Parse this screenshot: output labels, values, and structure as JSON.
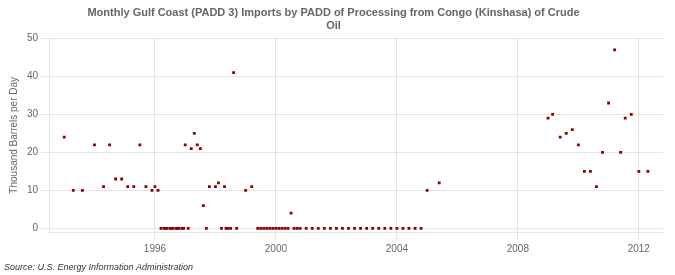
{
  "chart_data": {
    "type": "scatter",
    "title": "Monthly Gulf Coast (PADD 3) Imports by PADD of Processing from Congo (Kinshasa) of Crude\nOil",
    "ylabel": "Thousand Barrels per Day",
    "source": "Source: U.S. Energy Information Administration",
    "color": "#8b0000",
    "marker": "square",
    "grid": true,
    "xlim": [
      1992.5,
      2012.8
    ],
    "ylim": [
      -1,
      50
    ],
    "xticks": [
      1996,
      2000,
      2004,
      2008,
      2012
    ],
    "yticks": [
      0,
      10,
      20,
      30,
      40,
      50
    ],
    "x": [
      1993.0,
      1993.3,
      1993.6,
      1994.0,
      1994.3,
      1994.5,
      1994.7,
      1994.9,
      1995.1,
      1995.3,
      1995.5,
      1995.7,
      1995.9,
      1996.0,
      1996.1,
      1996.2,
      1996.3,
      1996.35,
      1996.4,
      1996.5,
      1996.55,
      1996.6,
      1996.7,
      1996.75,
      1996.8,
      1996.9,
      1996.95,
      1997.0,
      1997.1,
      1997.2,
      1997.3,
      1997.4,
      1997.5,
      1997.6,
      1997.7,
      1997.8,
      1998.0,
      1998.1,
      1998.2,
      1998.3,
      1998.35,
      1998.4,
      1998.5,
      1998.6,
      1998.7,
      1999.0,
      1999.2,
      1999.4,
      1999.5,
      1999.6,
      1999.7,
      1999.8,
      1999.9,
      2000.0,
      2000.1,
      2000.2,
      2000.3,
      2000.4,
      2000.5,
      2000.6,
      2000.7,
      2000.8,
      2001.0,
      2001.2,
      2001.4,
      2001.6,
      2001.8,
      2002.0,
      2002.2,
      2002.4,
      2002.6,
      2002.8,
      2003.0,
      2003.2,
      2003.4,
      2003.6,
      2003.8,
      2004.0,
      2004.2,
      2004.4,
      2004.6,
      2004.8,
      2005.0,
      2005.4,
      2009.0,
      2009.15,
      2009.4,
      2009.6,
      2009.8,
      2010.0,
      2010.2,
      2010.4,
      2010.6,
      2010.8,
      2011.0,
      2011.2,
      2011.4,
      2011.55,
      2011.75,
      2012.0,
      2012.3
    ],
    "values": [
      24,
      10,
      10,
      22,
      11,
      22,
      13,
      13,
      11,
      11,
      22,
      11,
      10,
      11,
      10,
      0,
      0,
      0,
      0,
      0,
      0,
      0,
      0,
      0,
      0,
      0,
      0,
      22,
      0,
      21,
      25,
      22,
      21,
      6,
      0,
      11,
      11,
      12,
      0,
      11,
      0,
      0,
      0,
      41,
      0,
      10,
      11,
      0,
      0,
      0,
      0,
      0,
      0,
      0,
      0,
      0,
      0,
      0,
      4,
      0,
      0,
      0,
      0,
      0,
      0,
      0,
      0,
      0,
      0,
      0,
      0,
      0,
      0,
      0,
      0,
      0,
      0,
      0,
      0,
      0,
      0,
      0,
      10,
      12,
      29,
      30,
      24,
      25,
      26,
      22,
      15,
      15,
      11,
      20,
      33,
      47,
      20,
      29,
      30,
      15,
      15
    ]
  }
}
